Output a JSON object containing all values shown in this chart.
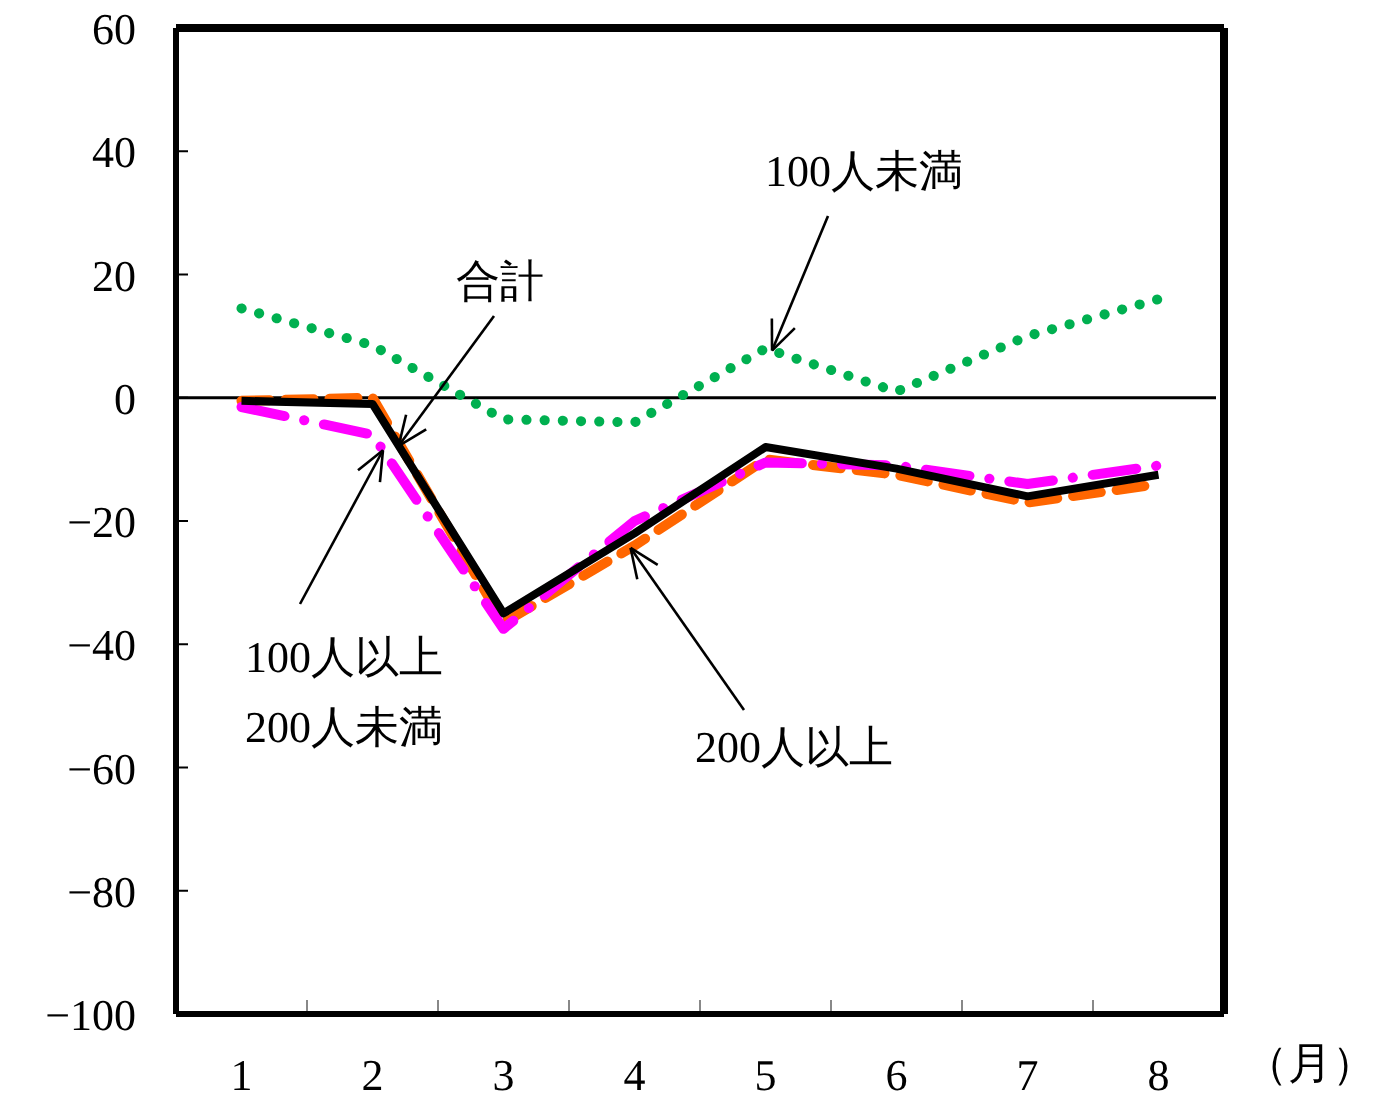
{
  "chart_data": {
    "type": "line",
    "xlabel": "（月）",
    "categories": [
      "1",
      "2",
      "3",
      "4",
      "5",
      "6",
      "7",
      "8"
    ],
    "ylim": [
      -100,
      60
    ],
    "yticks": [
      60,
      40,
      20,
      0,
      {
        "value": -20,
        "label": "−20"
      },
      {
        "value": -40,
        "label": "−40"
      },
      {
        "value": -60,
        "label": "−60"
      },
      {
        "value": -80,
        "label": "−80"
      },
      {
        "value": -100,
        "label": "−100"
      }
    ],
    "ref_lines": [
      {
        "axis": "y",
        "value": 0,
        "color": "#000000"
      }
    ],
    "grid": false,
    "series": [
      {
        "name": "合計",
        "color": "#000000",
        "line_style": "solid",
        "values": [
          -0.5,
          -1,
          -35,
          -22,
          -8,
          -11.5,
          -16,
          -12.5
        ]
      },
      {
        "name": "100人未満",
        "color": "#00b050",
        "line_style": "dotted",
        "values": [
          14.5,
          8.5,
          -3.5,
          -4,
          8,
          1,
          10,
          16
        ]
      },
      {
        "name": "100人以上\n200人未満",
        "color": "#ff00ff",
        "line_style": "dashdot",
        "values": [
          -1.5,
          -6,
          -37.5,
          -20,
          -10.5,
          -11,
          -14,
          -11
        ]
      },
      {
        "name": "200人以上",
        "color": "#ff6600",
        "line_style": "dashed",
        "values": [
          -0.5,
          0,
          -36.5,
          -24,
          -10,
          -12.5,
          -17,
          -14
        ]
      }
    ]
  }
}
